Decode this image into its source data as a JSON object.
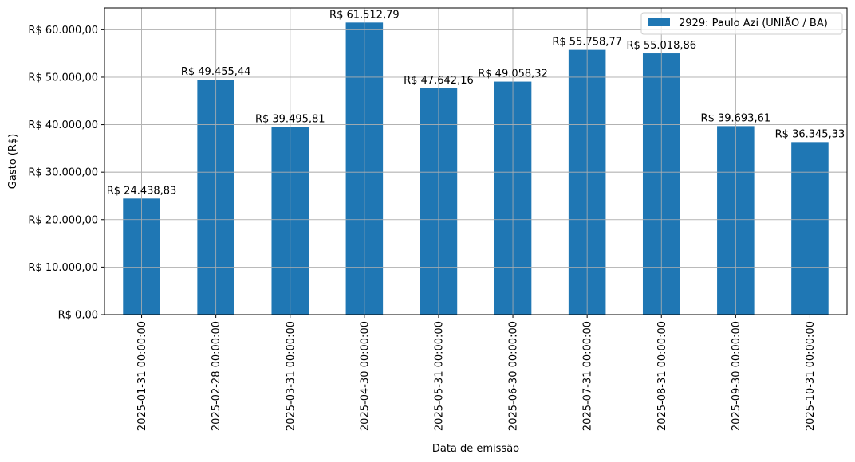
{
  "chart_data": {
    "type": "bar",
    "categories": [
      "2025-01-31 00:00:00",
      "2025-02-28 00:00:00",
      "2025-03-31 00:00:00",
      "2025-04-30 00:00:00",
      "2025-05-31 00:00:00",
      "2025-06-30 00:00:00",
      "2025-07-31 00:00:00",
      "2025-08-31 00:00:00",
      "2025-09-30 00:00:00",
      "2025-10-31 00:00:00"
    ],
    "series": [
      {
        "name": "2929: Paulo Azi (UNIÃO / BA)",
        "color": "#1f77b4",
        "values": [
          24438.83,
          49455.44,
          39495.81,
          61512.79,
          47642.16,
          49058.32,
          55758.77,
          55018.86,
          39693.61,
          36345.33
        ]
      }
    ],
    "data_labels": [
      "R$ 24.438,83",
      "R$ 49.455,44",
      "R$ 39.495,81",
      "R$ 61.512,79",
      "R$ 47.642,16",
      "R$ 49.058,32",
      "R$ 55.758,77",
      "R$ 55.018,86",
      "R$ 39.693,61",
      "R$ 36.345,33"
    ],
    "y_ticks": [
      0,
      10000,
      20000,
      30000,
      40000,
      50000,
      60000
    ],
    "y_tick_labels": [
      "R$ 0,00",
      "R$ 10.000,00",
      "R$ 20.000,00",
      "R$ 30.000,00",
      "R$ 40.000,00",
      "R$ 50.000,00",
      "R$ 60.000,00"
    ],
    "xlabel": "Data de emissão",
    "ylabel": "Gasto (R$)",
    "ylim": [
      0,
      64588.43
    ],
    "grid": true,
    "legend_position": "top-right"
  }
}
